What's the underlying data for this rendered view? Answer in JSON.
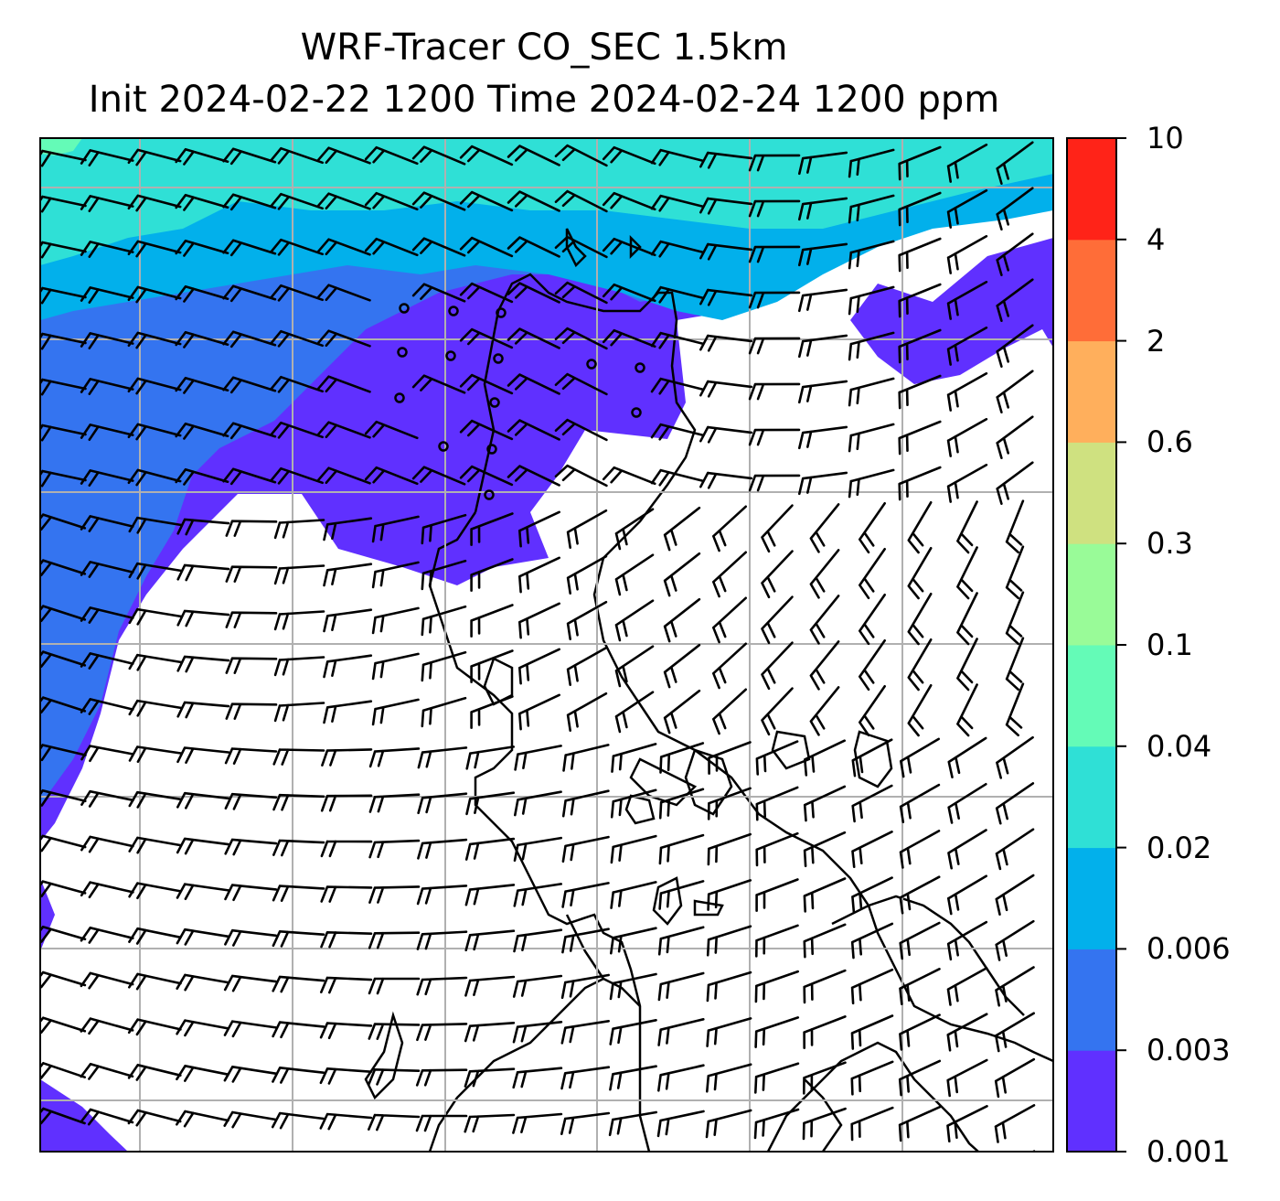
{
  "title": {
    "line1": "WRF-Tracer CO_SEC 1.5km",
    "line2": "Init 2024-02-22 1200 Time 2024-02-24 1200 ppm"
  },
  "colorbar": {
    "levels": [
      "0.001",
      "0.003",
      "0.006",
      "0.02",
      "0.04",
      "0.1",
      "0.3",
      "0.6",
      "2",
      "4",
      "10"
    ],
    "labels": [
      {
        "text": "0.001"
      },
      {
        "text": "0.003"
      },
      {
        "text": "0.006"
      },
      {
        "text": "0.02"
      },
      {
        "text": "0.04"
      },
      {
        "text": "0.1"
      },
      {
        "text": "0.3"
      },
      {
        "text": "0.6"
      },
      {
        "text": "2"
      },
      {
        "text": "4"
      },
      {
        "text": "10"
      }
    ],
    "colors": [
      "#6030ff",
      "#3474f0",
      "#02b0eb",
      "#2fe0d6",
      "#64fbb7",
      "#99fb98",
      "#cfe180",
      "#ffaf5c",
      "#ff6d38",
      "#ff2318"
    ]
  },
  "map": {
    "grid_color": "#b0b0b0",
    "barb_color": "#000000",
    "coast_color": "#000000"
  }
}
